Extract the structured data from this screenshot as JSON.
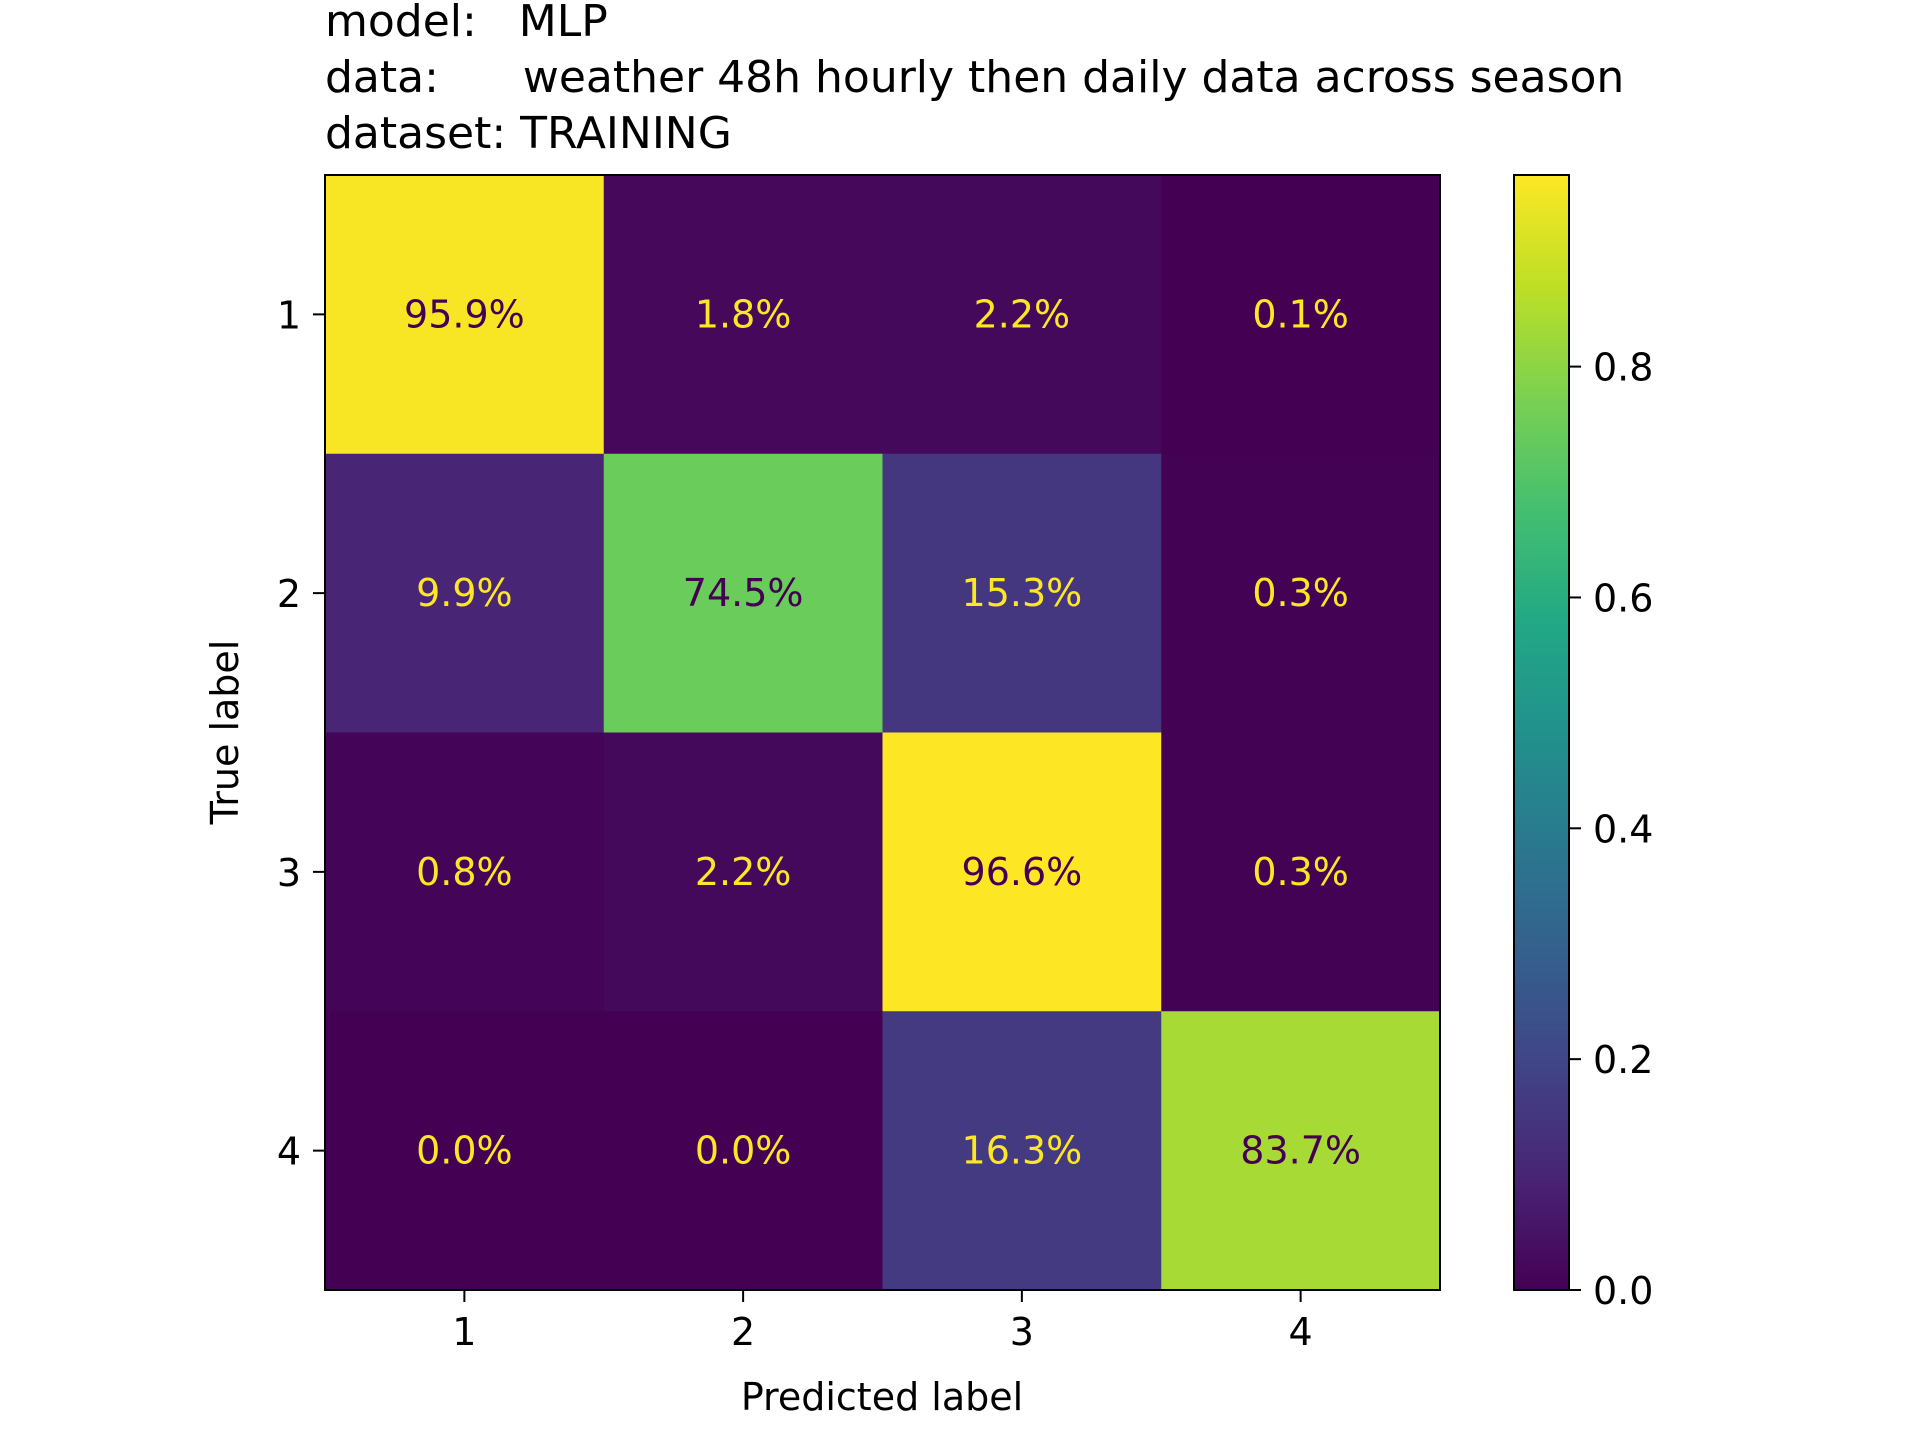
{
  "chart_data": {
    "type": "heatmap",
    "title_lines": [
      "model:   MLP",
      "data:      weather 48h hourly then daily data across season",
      "dataset: TRAINING"
    ],
    "xlabel": "Predicted label",
    "ylabel": "True label",
    "x_categories": [
      "1",
      "2",
      "3",
      "4"
    ],
    "y_categories": [
      "1",
      "2",
      "3",
      "4"
    ],
    "values": [
      [
        0.959,
        0.018,
        0.022,
        0.001
      ],
      [
        0.099,
        0.745,
        0.153,
        0.003
      ],
      [
        0.008,
        0.022,
        0.966,
        0.003
      ],
      [
        0.0,
        0.0,
        0.163,
        0.837
      ]
    ],
    "cell_labels": [
      [
        "95.9%",
        "1.8%",
        "2.2%",
        "0.1%"
      ],
      [
        "9.9%",
        "74.5%",
        "15.3%",
        "0.3%"
      ],
      [
        "0.8%",
        "2.2%",
        "96.6%",
        "0.3%"
      ],
      [
        "0.0%",
        "0.0%",
        "16.3%",
        "83.7%"
      ]
    ],
    "colormap": "viridis",
    "colorbar": {
      "range": [
        0.0,
        0.966
      ],
      "ticks": [
        0.0,
        0.2,
        0.4,
        0.6,
        0.8
      ],
      "tick_labels": [
        "0.0",
        "0.2",
        "0.4",
        "0.6",
        "0.8"
      ]
    },
    "text_colors": {
      "dark_cell": "#fde725",
      "light_cell": "#440154"
    }
  }
}
